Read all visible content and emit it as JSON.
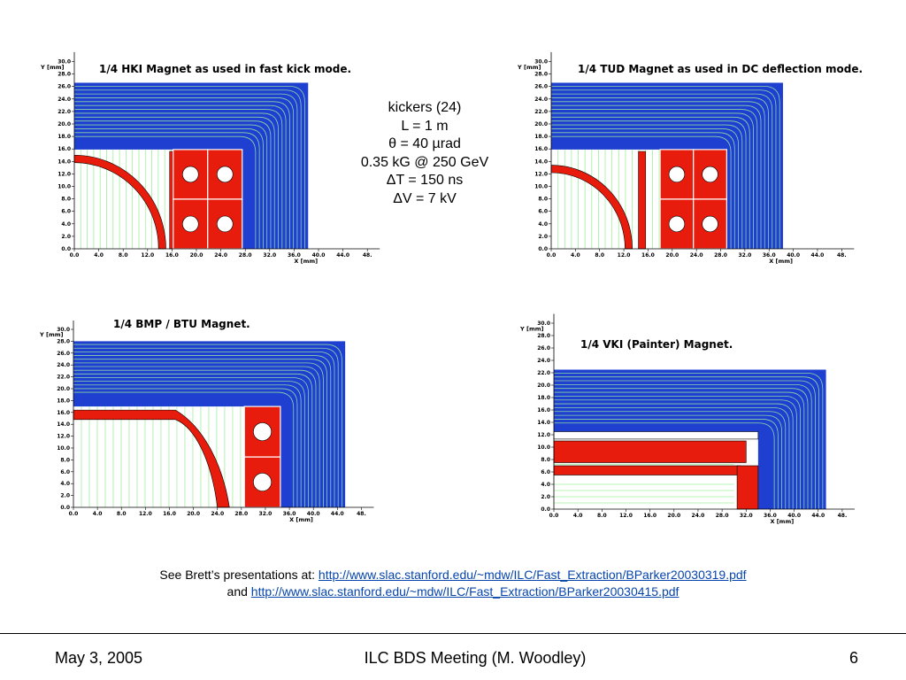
{
  "panels": [
    {
      "title": "1/4 HKI Magnet as used in fast kick mode.",
      "ylabel": "Y [mm]",
      "xlabel": "X [mm]",
      "y_ticks": [
        "30.0",
        "28.0",
        "26.0",
        "24.0",
        "22.0",
        "20.0",
        "18.0",
        "16.0",
        "14.0",
        "12.0",
        "10.0",
        "8.0",
        "6.0",
        "4.0",
        "2.0",
        "0.0"
      ],
      "x_ticks": [
        "0.0",
        "4.0",
        "8.0",
        "12.0",
        "16.0",
        "20.0",
        "24.0",
        "28.0",
        "32.0",
        "36.0",
        "40.0",
        "44.0",
        "48."
      ]
    },
    {
      "title": "1/4 TUD Magnet as used in DC deflection mode.",
      "ylabel": "Y [mm]",
      "xlabel": "X [mm]",
      "y_ticks": [
        "30.0",
        "28.0",
        "26.0",
        "24.0",
        "22.0",
        "20.0",
        "18.0",
        "16.0",
        "14.0",
        "12.0",
        "10.0",
        "8.0",
        "6.0",
        "4.0",
        "2.0",
        "0.0"
      ],
      "x_ticks": [
        "0.0",
        "4.0",
        "8.0",
        "12.0",
        "16.0",
        "20.0",
        "24.0",
        "28.0",
        "32.0",
        "36.0",
        "40.0",
        "44.0",
        "48."
      ]
    },
    {
      "title": "1/4 BMP / BTU Magnet.",
      "ylabel": "Y [mm]",
      "xlabel": "X [mm]",
      "y_ticks": [
        "30.0",
        "28.0",
        "26.0",
        "24.0",
        "22.0",
        "20.0",
        "18.0",
        "16.0",
        "14.0",
        "12.0",
        "10.0",
        "8.0",
        "6.0",
        "4.0",
        "2.0",
        "0.0"
      ],
      "x_ticks": [
        "0.0",
        "4.0",
        "8.0",
        "12.0",
        "16.0",
        "20.0",
        "24.0",
        "28.0",
        "32.0",
        "36.0",
        "40.0",
        "44.0",
        "48."
      ]
    },
    {
      "title": "1/4 VKI (Painter) Magnet.",
      "ylabel": "Y [mm]",
      "xlabel": "X [mm]",
      "y_ticks": [
        "30.0",
        "28.0",
        "26.0",
        "24.0",
        "22.0",
        "20.0",
        "18.0",
        "16.0",
        "14.0",
        "12.0",
        "10.0",
        "8.0",
        "6.0",
        "4.0",
        "2.0",
        "0.0"
      ],
      "x_ticks": [
        "0.0",
        "4.0",
        "8.0",
        "12.0",
        "16.0",
        "20.0",
        "24.0",
        "28.0",
        "32.0",
        "36.0",
        "40.0",
        "44.0",
        "48."
      ]
    }
  ],
  "params": {
    "lines": [
      "kickers (24)",
      "L = 1 m",
      "θ = 40 µrad",
      "0.35 kG @ 250 GeV",
      "ΔT = 150 ns",
      "ΔV = 7 kV"
    ]
  },
  "refs": {
    "line1_prefix": "See Brett’s presentations at: ",
    "link1": "http://www.slac.stanford.edu/~mdw/ILC/Fast_Extraction/BParker20030319.pdf",
    "line2_prefix": "and ",
    "link2": "http://www.slac.stanford.edu/~mdw/ILC/Fast_Extraction/BParker20030415.pdf"
  },
  "footer": {
    "date": "May 3, 2005",
    "meeting": "ILC BDS Meeting (M. Woodley)",
    "page": "6"
  },
  "colors": {
    "iron": "#1f3fd0",
    "coil": "#e81c0c",
    "field_line": "#9ef09e",
    "axis": "#000000",
    "link": "#0645ad"
  }
}
